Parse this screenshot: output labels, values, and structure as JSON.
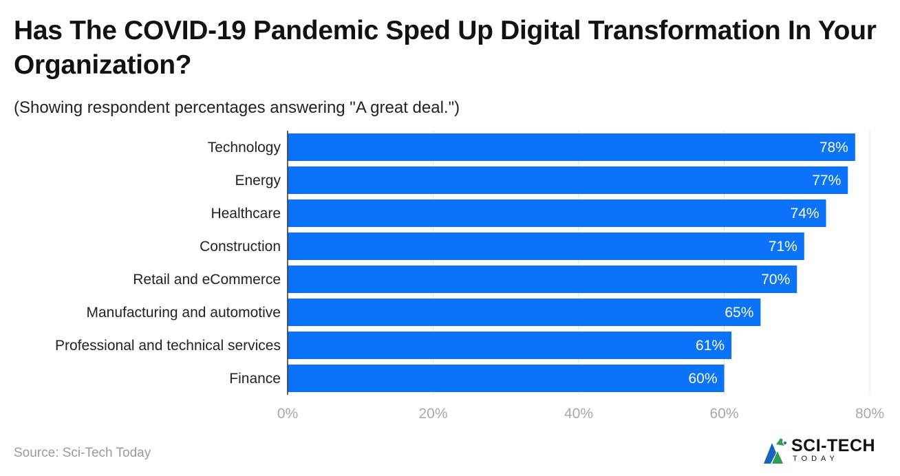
{
  "title": "Has The COVID-19 Pandemic Sped Up Digital Transformation In Your Organization?",
  "subtitle": "(Showing respondent percentages answering \"A great deal.\")",
  "source": "Source: Sci-Tech Today",
  "logo": {
    "main": "SCI-TECH",
    "sub": "TODAY"
  },
  "colors": {
    "bar": "#0b73fa",
    "bar_label": "#ffffff",
    "category_label": "#222222",
    "tick_label": "#a8a8a8",
    "gridline": "#e3e3e3",
    "axis": "#333333"
  },
  "chart_data": {
    "type": "bar",
    "orientation": "horizontal",
    "categories": [
      "Technology",
      "Energy",
      "Healthcare",
      "Construction",
      "Retail and eCommerce",
      "Manufacturing and automotive",
      "Professional and technical services",
      "Finance"
    ],
    "values": [
      78,
      77,
      74,
      71,
      70,
      65,
      61,
      60
    ],
    "value_labels": [
      "78%",
      "77%",
      "74%",
      "71%",
      "70%",
      "65%",
      "61%",
      "60%"
    ],
    "xlim": [
      0,
      80
    ],
    "xticks": [
      0,
      20,
      40,
      60,
      80
    ],
    "xtick_labels": [
      "0%",
      "20%",
      "40%",
      "60%",
      "80%"
    ],
    "grid": true,
    "xlabel": "",
    "ylabel": ""
  }
}
